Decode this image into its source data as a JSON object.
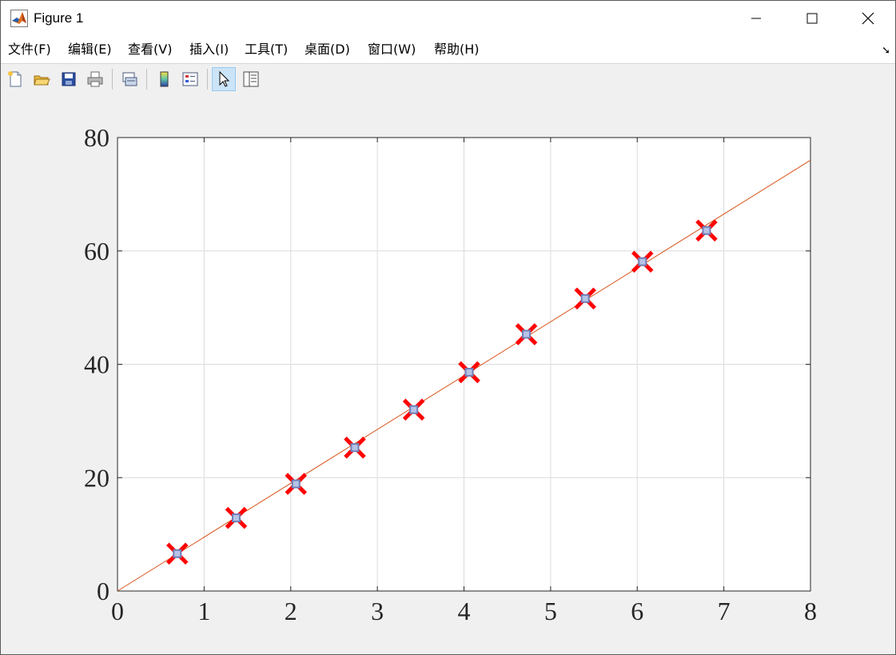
{
  "window": {
    "title": "Figure 1",
    "controls": {
      "minimize": "—",
      "maximize": "☐",
      "close": "✕"
    }
  },
  "menu": {
    "items": [
      "文件(F)",
      "编辑(E)",
      "查看(V)",
      "插入(I)",
      "工具(T)",
      "桌面(D)",
      "窗口(W)",
      "帮助(H)"
    ],
    "dock_icon": "dock-arrow-icon"
  },
  "toolbar": {
    "buttons": [
      {
        "icon": "new-figure-icon"
      },
      {
        "icon": "open-file-icon"
      },
      {
        "icon": "save-icon"
      },
      {
        "icon": "print-icon"
      },
      {
        "icon": "link-plot-icon"
      },
      {
        "icon": "insert-colorbar-icon"
      },
      {
        "icon": "insert-legend-icon"
      },
      {
        "icon": "edit-plot-pointer-icon",
        "active": true
      },
      {
        "icon": "property-inspector-icon"
      }
    ]
  },
  "chart_data": {
    "type": "scatter",
    "title": "",
    "xlabel": "",
    "ylabel": "",
    "xlim": [
      0,
      8
    ],
    "ylim": [
      0,
      80
    ],
    "xticks": [
      "0",
      "1",
      "2",
      "3",
      "4",
      "5",
      "6",
      "7",
      "8"
    ],
    "yticks": [
      "0",
      "20",
      "40",
      "60",
      "80"
    ],
    "grid": true,
    "series": [
      {
        "marker": "x",
        "color": "#ff0000",
        "x": [
          0.69,
          1.37,
          2.06,
          2.74,
          3.42,
          4.06,
          4.72,
          5.4,
          6.06,
          6.8
        ],
        "y": [
          6.6,
          12.9,
          18.9,
          25.3,
          32.0,
          38.6,
          45.3,
          51.6,
          58.1,
          63.6
        ]
      },
      {
        "marker": "square",
        "color": "#6f7fb8",
        "x": [
          0.69,
          1.37,
          2.06,
          2.74,
          3.42,
          4.06,
          4.72,
          5.4,
          6.06,
          6.8
        ],
        "y": [
          6.6,
          12.9,
          18.9,
          25.3,
          32.0,
          38.6,
          45.3,
          51.6,
          58.1,
          63.6
        ]
      },
      {
        "type": "line",
        "color": "#d95319",
        "x": [
          0,
          8
        ],
        "y": [
          0,
          76
        ]
      }
    ]
  }
}
